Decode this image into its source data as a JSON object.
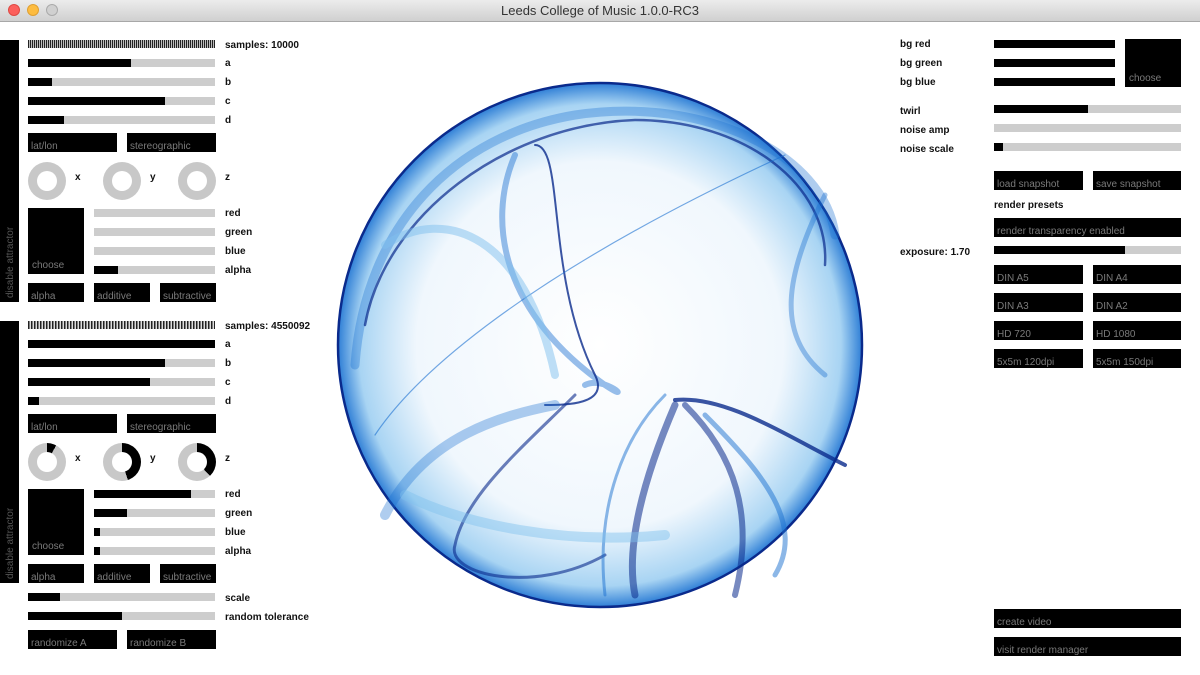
{
  "window": {
    "title": "Leeds College of Music 1.0.0-RC3"
  },
  "attractor_a": {
    "disable_label": "disable attractor",
    "samples_label": "samples: 10000",
    "params": [
      {
        "label": "a",
        "value": 0.55
      },
      {
        "label": "b",
        "value": 0.13
      },
      {
        "label": "c",
        "value": 0.73
      },
      {
        "label": "d",
        "value": 0.19
      }
    ],
    "projection": {
      "latlon": "lat/lon",
      "stereographic": "stereographic"
    },
    "rotation": [
      {
        "label": "x",
        "value": 0
      },
      {
        "label": "y",
        "value": 0
      },
      {
        "label": "z",
        "value": 0
      }
    ],
    "color_choose": "choose",
    "colors": [
      {
        "label": "red",
        "value": 0
      },
      {
        "label": "green",
        "value": 0
      },
      {
        "label": "blue",
        "value": 0
      },
      {
        "label": "alpha",
        "value": 0.2
      }
    ],
    "blend": {
      "alpha": "alpha",
      "additive": "additive",
      "subtractive": "subtractive"
    }
  },
  "attractor_b": {
    "disable_label": "disable attractor",
    "samples_label": "samples: 4550092",
    "params": [
      {
        "label": "a",
        "value": 1.0
      },
      {
        "label": "b",
        "value": 0.73
      },
      {
        "label": "c",
        "value": 0.65
      },
      {
        "label": "d",
        "value": 0.06
      }
    ],
    "projection": {
      "latlon": "lat/lon",
      "stereographic": "stereographic"
    },
    "rotation": [
      {
        "label": "x",
        "value": 0.08
      },
      {
        "label": "y",
        "value": 0.45
      },
      {
        "label": "z",
        "value": 0.38
      }
    ],
    "color_choose": "choose",
    "colors": [
      {
        "label": "red",
        "value": 0.8
      },
      {
        "label": "green",
        "value": 0.27
      },
      {
        "label": "blue",
        "value": 0.05
      },
      {
        "label": "alpha",
        "value": 0.05
      }
    ],
    "blend": {
      "alpha": "alpha",
      "additive": "additive",
      "subtractive": "subtractive"
    }
  },
  "global": {
    "scale": {
      "label": "scale",
      "value": 0.17
    },
    "random_tolerance": {
      "label": "random tolerance",
      "value": 0.5
    },
    "randomize_a": "randomize A",
    "randomize_b": "randomize B"
  },
  "render": {
    "bg": [
      {
        "label": "bg red",
        "value": 1.0
      },
      {
        "label": "bg green",
        "value": 1.0
      },
      {
        "label": "bg blue",
        "value": 1.0
      }
    ],
    "bg_choose": "choose",
    "twirl": {
      "label": "twirl",
      "value": 0.5
    },
    "noise_amp": {
      "label": "noise amp",
      "value": 0
    },
    "noise_scale": {
      "label": "noise scale",
      "value": 0.05
    },
    "load_snapshot": "load snapshot",
    "save_snapshot": "save snapshot",
    "render_presets": "render presets",
    "transparency": "render transparency enabled",
    "exposure": {
      "label": "exposure: 1.70",
      "value": 0.7
    },
    "presets": [
      "DIN A5",
      "DIN A4",
      "DIN A3",
      "DIN A2",
      "HD 720",
      "HD 1080",
      "5x5m 120dpi",
      "5x5m 150dpi"
    ],
    "create_video": "create video",
    "visit_manager": "visit render manager"
  },
  "colors": {
    "attractor_dark": "#0a2a8c",
    "attractor_mid": "#1a6fd0",
    "attractor_light": "#7fc0ee",
    "control": "#000000",
    "track": "#cdcdcd"
  }
}
